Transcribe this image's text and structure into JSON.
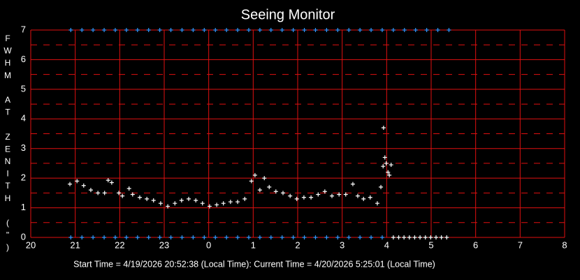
{
  "chart_data": {
    "type": "scatter",
    "title": "Seeing Monitor",
    "y_label": "FWHM AT ZENITH (\")",
    "footer": "Start Time = 4/19/2026 20:52:38 (Local Time):  Current Time = 4/20/2026 5:25:01 (Local Time)",
    "xlim": [
      20,
      32
    ],
    "ylim": [
      0,
      7
    ],
    "xticks": [
      20,
      21,
      22,
      23,
      {
        "value": 24,
        "label": "0"
      },
      {
        "value": 25,
        "label": "1"
      },
      {
        "value": 26,
        "label": "2"
      },
      {
        "value": 27,
        "label": "3"
      },
      {
        "value": 28,
        "label": "4"
      },
      {
        "value": 29,
        "label": "5"
      },
      {
        "value": 30,
        "label": "6"
      },
      {
        "value": 31,
        "label": "7"
      },
      {
        "value": 32,
        "label": "8"
      }
    ],
    "yticks": [
      0,
      1,
      2,
      3,
      4,
      5,
      6,
      7
    ],
    "minor_yticks": [
      0.5,
      1.5,
      2.5,
      3.5,
      4.5,
      5.5,
      6.5
    ],
    "grid": true,
    "grid_color": "#e01010",
    "series": [
      {
        "color": "#ffffff",
        "x": [
          20.88,
          21.04,
          21.19,
          21.35,
          21.51,
          21.66,
          21.74,
          21.82,
          21.98,
          22.06,
          22.21,
          22.29,
          22.45,
          22.61,
          22.76,
          22.92,
          23.08,
          23.24,
          23.39,
          23.55,
          23.71,
          23.86,
          24.02,
          24.18,
          24.33,
          24.49,
          24.65,
          24.81,
          24.96,
          25.04,
          25.15,
          25.25,
          25.36,
          25.51,
          25.67,
          25.83,
          25.98,
          26.14,
          26.3,
          26.46,
          26.61,
          26.77,
          26.93,
          27.08,
          27.24,
          27.35,
          27.48,
          27.63,
          27.79,
          27.87,
          27.92,
          27.93,
          27.96,
          27.99,
          28.03,
          28.06,
          28.1
        ],
        "values": [
          1.8,
          1.9,
          1.75,
          1.6,
          1.5,
          1.5,
          1.93,
          1.85,
          1.5,
          1.4,
          1.65,
          1.45,
          1.35,
          1.3,
          1.25,
          1.15,
          1.05,
          1.15,
          1.25,
          1.3,
          1.25,
          1.15,
          1.05,
          1.1,
          1.15,
          1.2,
          1.2,
          1.3,
          1.9,
          2.1,
          1.6,
          2.0,
          1.7,
          1.55,
          1.5,
          1.4,
          1.3,
          1.35,
          1.35,
          1.45,
          1.55,
          1.4,
          1.45,
          1.45,
          1.8,
          1.4,
          1.3,
          1.35,
          1.15,
          1.7,
          2.4,
          3.7,
          2.7,
          2.5,
          2.2,
          2.1,
          2.45
        ]
      },
      {
        "color": "#3399ff",
        "x": [
          20.9,
          21.15,
          21.4,
          21.65,
          21.9,
          22.15,
          22.4,
          22.65,
          22.9,
          23.15,
          23.4,
          23.65,
          23.9,
          24.15,
          24.4,
          24.65,
          24.9,
          25.15,
          25.4,
          25.65,
          25.9,
          26.15,
          26.4,
          26.65,
          26.9,
          27.15,
          27.4,
          27.65,
          27.9,
          28.15,
          28.4,
          28.65,
          28.9,
          29.15,
          29.4
        ],
        "values": [
          7,
          7,
          7,
          7,
          7,
          7,
          7,
          7,
          7,
          7,
          7,
          7,
          7,
          7,
          7,
          7,
          7,
          7,
          7,
          7,
          7,
          7,
          7,
          7,
          7,
          7,
          7,
          7,
          7,
          7,
          7,
          7,
          7,
          7,
          7
        ]
      },
      {
        "color": "#3399ff",
        "x": [
          20.9,
          21.15,
          21.4,
          21.65,
          21.9,
          22.15,
          22.4,
          22.65,
          22.9,
          23.15,
          23.4,
          23.65,
          23.9,
          24.15,
          24.4,
          24.65,
          24.9,
          25.15,
          25.4,
          25.65,
          25.9,
          26.15,
          26.4,
          26.65,
          26.9,
          27.15,
          27.4,
          27.65,
          27.9
        ],
        "values": [
          0,
          0,
          0,
          0,
          0,
          0,
          0,
          0,
          0,
          0,
          0,
          0,
          0,
          0,
          0,
          0,
          0,
          0,
          0,
          0,
          0,
          0,
          0,
          0,
          0,
          0,
          0,
          0,
          0
        ]
      },
      {
        "color": "#ffffff",
        "x": [
          28.15,
          28.27,
          28.39,
          28.51,
          28.63,
          28.75,
          28.87,
          28.99,
          29.11,
          29.23,
          29.35
        ],
        "values": [
          0,
          0,
          0,
          0,
          0,
          0,
          0,
          0,
          0,
          0,
          0
        ]
      }
    ]
  }
}
